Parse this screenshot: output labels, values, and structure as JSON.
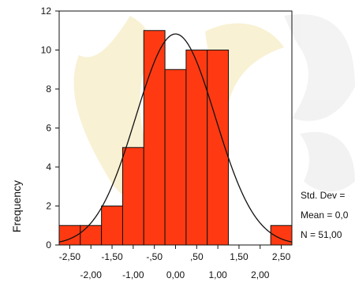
{
  "chart_data": {
    "type": "histogram",
    "ylabel": "Frequency",
    "ylim": [
      0,
      12
    ],
    "y_ticks": [
      "0",
      "2",
      "4",
      "6",
      "8",
      "10",
      "12"
    ],
    "y_tick_values": [
      0,
      2,
      4,
      6,
      8,
      10,
      12
    ],
    "x_ticks_upper": [
      "-2,50",
      "-1,50",
      "-,50",
      ",50",
      "1,50",
      "2,50"
    ],
    "x_ticks_upper_values": [
      -2.5,
      -1.5,
      -0.5,
      0.5,
      1.5,
      2.5
    ],
    "x_ticks_lower": [
      "-2,00",
      "-1,00",
      "0,00",
      "1,00",
      "2,00"
    ],
    "x_ticks_lower_values": [
      -2.0,
      -1.0,
      0.0,
      1.0,
      2.0
    ],
    "xlim": [
      -2.75,
      2.75
    ],
    "bins": [
      {
        "from": -2.75,
        "to": -2.25,
        "count": 1
      },
      {
        "from": -2.25,
        "to": -1.75,
        "count": 1
      },
      {
        "from": -1.75,
        "to": -1.25,
        "count": 2
      },
      {
        "from": -1.25,
        "to": -0.75,
        "count": 5
      },
      {
        "from": -0.75,
        "to": -0.25,
        "count": 11
      },
      {
        "from": -0.25,
        "to": 0.25,
        "count": 9
      },
      {
        "from": 0.25,
        "to": 0.75,
        "count": 10
      },
      {
        "from": 0.75,
        "to": 1.25,
        "count": 10
      },
      {
        "from": 1.25,
        "to": 1.75,
        "count": 0
      },
      {
        "from": 1.75,
        "to": 2.25,
        "count": 0
      },
      {
        "from": 2.25,
        "to": 2.75,
        "count": 1
      }
    ],
    "normal_curve": {
      "mean": 0.0,
      "std": 0.94,
      "n": 51,
      "bin_width": 0.5
    },
    "stats": {
      "std_dev_label": "Std. Dev =",
      "mean_label": "Mean = 0,0",
      "n_label": "N = 51,00"
    },
    "colors": {
      "bar_fill": "#ff3a12",
      "bar_stroke": "#111111",
      "curve": "#111111",
      "watermark": "#f2e2a4"
    }
  }
}
